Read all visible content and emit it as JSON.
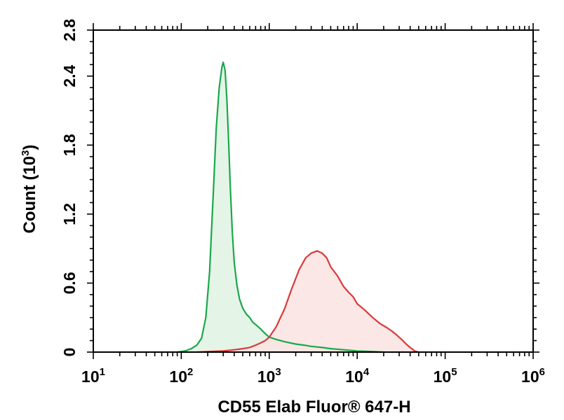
{
  "chart_data": {
    "type": "area",
    "xlabel": "CD55 Elab Fluor® 647-H",
    "ylabel": "Count (10",
    "ylabel_exp": "3",
    "ylabel_close": ")",
    "x_scale": "log",
    "xlim": [
      10,
      1000000
    ],
    "ylim": [
      0,
      2.8
    ],
    "x_tick_labels": [
      {
        "base": "10",
        "exp": "1"
      },
      {
        "base": "10",
        "exp": "2"
      },
      {
        "base": "10",
        "exp": "3"
      },
      {
        "base": "10",
        "exp": "4"
      },
      {
        "base": "10",
        "exp": "5"
      },
      {
        "base": "10",
        "exp": "6"
      }
    ],
    "x_ticks": [
      10,
      100,
      1000,
      10000,
      100000,
      1000000
    ],
    "y_ticks": [
      "0",
      "0.6",
      "1.2",
      "1.8",
      "2.4",
      "2.8"
    ],
    "y_tick_values": [
      0,
      0.6,
      1.2,
      1.8,
      2.4,
      2.8
    ],
    "grid": false,
    "series": [
      {
        "color": "#1aa84a",
        "fill": "#dff3e4",
        "x": [
          90,
          110,
          130,
          150,
          170,
          190,
          210,
          230,
          250,
          270,
          290,
          300,
          315,
          330,
          345,
          360,
          380,
          400,
          430,
          460,
          500,
          550,
          600,
          650,
          700,
          800,
          900,
          1000,
          1200,
          1500,
          2000,
          2500,
          3000,
          4000,
          5000,
          7000,
          10000,
          15000,
          20000
        ],
        "y": [
          0,
          0.01,
          0.03,
          0.06,
          0.12,
          0.3,
          0.7,
          1.35,
          1.95,
          2.3,
          2.48,
          2.52,
          2.45,
          2.2,
          1.85,
          1.45,
          1.05,
          0.78,
          0.58,
          0.46,
          0.38,
          0.33,
          0.3,
          0.26,
          0.24,
          0.2,
          0.16,
          0.13,
          0.11,
          0.09,
          0.07,
          0.06,
          0.05,
          0.04,
          0.03,
          0.02,
          0.01,
          0.005,
          0
        ]
      },
      {
        "color": "#d93a3a",
        "fill": "#fbe3e3",
        "x": [
          150,
          200,
          300,
          400,
          500,
          600,
          700,
          800,
          900,
          1000,
          1200,
          1500,
          1800,
          2200,
          2600,
          3000,
          3500,
          4000,
          4500,
          5000,
          5500,
          6000,
          7000,
          8000,
          9000,
          10000,
          12000,
          15000,
          18000,
          22000,
          25000,
          28000,
          32000,
          36000,
          40000,
          45000,
          50000
        ],
        "y": [
          0,
          0.005,
          0.01,
          0.02,
          0.03,
          0.04,
          0.06,
          0.08,
          0.1,
          0.13,
          0.22,
          0.38,
          0.55,
          0.72,
          0.82,
          0.86,
          0.88,
          0.86,
          0.82,
          0.74,
          0.7,
          0.66,
          0.57,
          0.52,
          0.48,
          0.42,
          0.37,
          0.3,
          0.25,
          0.21,
          0.18,
          0.15,
          0.11,
          0.07,
          0.04,
          0.01,
          0
        ]
      }
    ]
  }
}
